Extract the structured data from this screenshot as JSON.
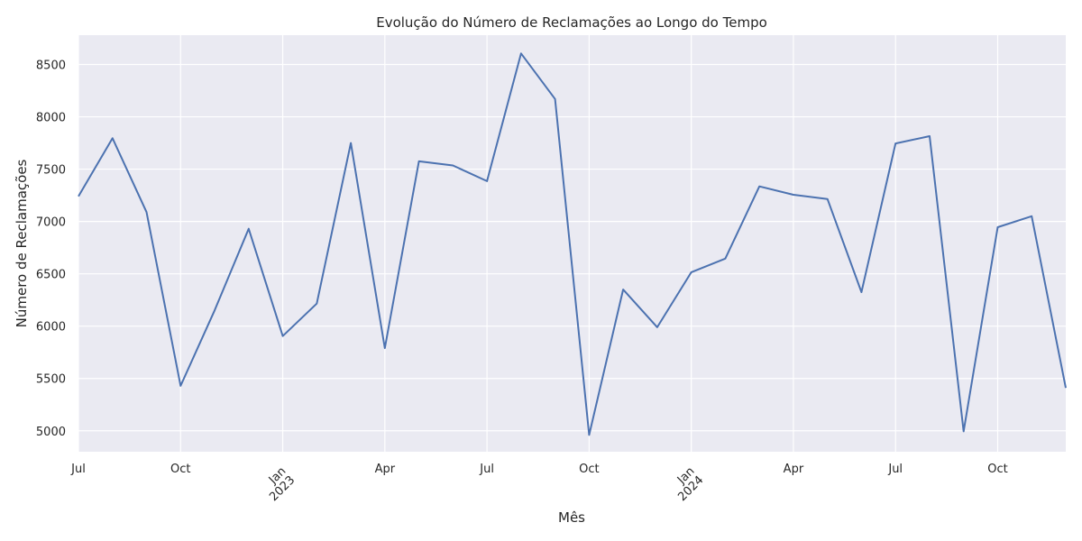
{
  "chart_data": {
    "type": "line",
    "title": "Evolução do Número de Reclamações ao Longo do Tempo",
    "xlabel": "Mês",
    "ylabel": "Número de Reclamações",
    "ylim": [
      4800,
      8780
    ],
    "xlim": [
      "2022-07",
      "2024-12"
    ],
    "grid": true,
    "y_ticks": [
      5000,
      5500,
      6000,
      6500,
      7000,
      7500,
      8000,
      8500
    ],
    "x_ticks": [
      {
        "date": "2022-07",
        "label": "Jul",
        "rotated": false
      },
      {
        "date": "2022-10",
        "label": "Oct",
        "rotated": false
      },
      {
        "date": "2023-01",
        "label": "Jan\n2023",
        "rotated": true
      },
      {
        "date": "2023-04",
        "label": "Apr",
        "rotated": false
      },
      {
        "date": "2023-07",
        "label": "Jul",
        "rotated": false
      },
      {
        "date": "2023-10",
        "label": "Oct",
        "rotated": false
      },
      {
        "date": "2024-01",
        "label": "Jan\n2024",
        "rotated": true
      },
      {
        "date": "2024-04",
        "label": "Apr",
        "rotated": false
      },
      {
        "date": "2024-07",
        "label": "Jul",
        "rotated": false
      },
      {
        "date": "2024-10",
        "label": "Oct",
        "rotated": false
      }
    ],
    "series": [
      {
        "color": "#4c72b0",
        "x": [
          "2022-07",
          "2022-08",
          "2022-09",
          "2022-10",
          "2022-11",
          "2022-12",
          "2023-01",
          "2023-02",
          "2023-03",
          "2023-04",
          "2023-05",
          "2023-06",
          "2023-07",
          "2023-08",
          "2023-09",
          "2023-10",
          "2023-11",
          "2023-12",
          "2024-01",
          "2024-02",
          "2024-03",
          "2024-04",
          "2024-05",
          "2024-06",
          "2024-07",
          "2024-08",
          "2024-09",
          "2024-10",
          "2024-11",
          "2024-12"
        ],
        "values": [
          7240,
          7795,
          7090,
          5430,
          6150,
          6930,
          5905,
          6215,
          7750,
          5790,
          7575,
          7535,
          7385,
          8605,
          8170,
          4960,
          6350,
          5990,
          6515,
          6645,
          7335,
          7255,
          7215,
          6325,
          7745,
          7815,
          4995,
          6945,
          7050,
          5410
        ]
      }
    ]
  }
}
